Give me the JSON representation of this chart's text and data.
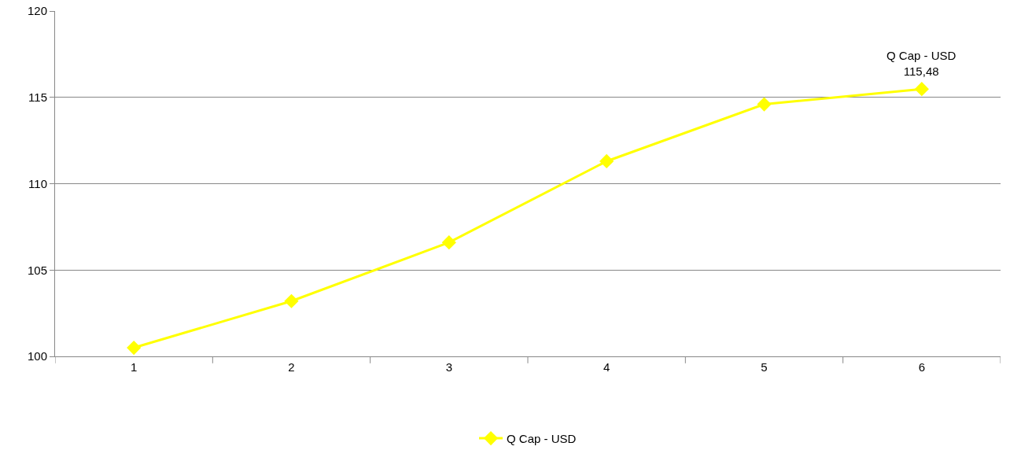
{
  "chart_data": {
    "type": "line",
    "categories": [
      "1",
      "2",
      "3",
      "4",
      "5",
      "6"
    ],
    "series": [
      {
        "name": "Q Cap - USD",
        "color": "#ffff00",
        "values": [
          100.5,
          103.2,
          106.6,
          111.3,
          114.6,
          115.48
        ]
      }
    ],
    "ylim": [
      100,
      120
    ],
    "yticks": [
      100,
      105,
      110,
      115,
      120
    ],
    "grid": "y",
    "legend": "bottom",
    "marker": "diamond",
    "line_style": "solid",
    "annotations": [
      {
        "text": "Q Cap - USD\n115,48",
        "x": "6",
        "y": 115.48
      }
    ]
  }
}
